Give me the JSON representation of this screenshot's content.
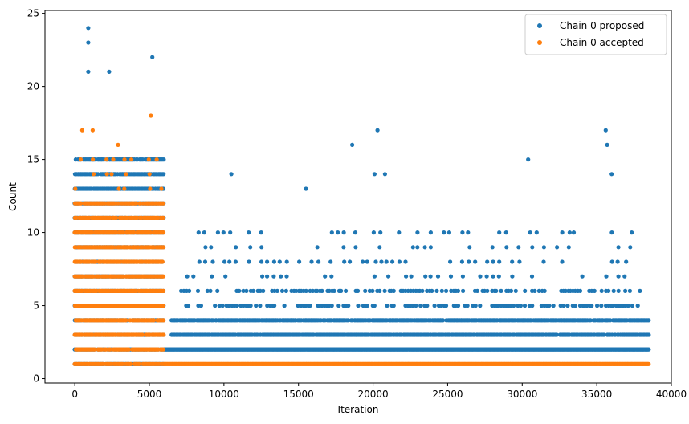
{
  "chart_data": {
    "type": "scatter",
    "xlabel": "Iteration",
    "ylabel": "Count",
    "xlim": [
      -2000,
      40000
    ],
    "ylim": [
      -0.3,
      25.2
    ],
    "xticks": [
      0,
      5000,
      10000,
      15000,
      20000,
      25000,
      30000,
      35000,
      40000
    ],
    "yticks": [
      0,
      5,
      10,
      15,
      20,
      25
    ],
    "grid": false,
    "legend_position": "top-right",
    "series": [
      {
        "name": "Chain 0 proposed",
        "color": "#1f77b4",
        "bands": [
          {
            "x": [
              0,
              6000
            ],
            "y": [
              1,
              15
            ],
            "density": "dense"
          },
          {
            "x": [
              6000,
              38500
            ],
            "y": [
              2,
              2
            ],
            "density": "continuous"
          },
          {
            "x": [
              6500,
              38500
            ],
            "y": [
              3,
              4
            ],
            "density": "dense"
          },
          {
            "x": [
              7000,
              38000
            ],
            "y": [
              5,
              6
            ],
            "density": "medium"
          },
          {
            "x": [
              7500,
              37500
            ],
            "y": [
              7,
              10
            ],
            "density": "sparse"
          }
        ],
        "outliers": [
          [
            900,
            24
          ],
          [
            900,
            23
          ],
          [
            900,
            21
          ],
          [
            2300,
            21
          ],
          [
            5200,
            22
          ],
          [
            10500,
            14
          ],
          [
            18600,
            16
          ],
          [
            20300,
            17
          ],
          [
            30400,
            15
          ],
          [
            35600,
            17
          ],
          [
            35700,
            16
          ],
          [
            15500,
            13
          ],
          [
            20100,
            14
          ],
          [
            20800,
            14
          ],
          [
            36000,
            14
          ]
        ]
      },
      {
        "name": "Chain 0 accepted",
        "color": "#ff7f0e",
        "bands": [
          {
            "x": [
              0,
              6000
            ],
            "y": [
              1,
              12
            ],
            "density": "dense"
          },
          {
            "x": [
              0,
              6000
            ],
            "y": [
              13,
              15
            ],
            "density": "sparse"
          },
          {
            "x": [
              6000,
              38500
            ],
            "y": [
              1,
              1
            ],
            "density": "continuous"
          }
        ],
        "outliers": [
          [
            500,
            17
          ],
          [
            2900,
            16
          ],
          [
            5100,
            18
          ],
          [
            1200,
            17
          ]
        ]
      }
    ]
  }
}
